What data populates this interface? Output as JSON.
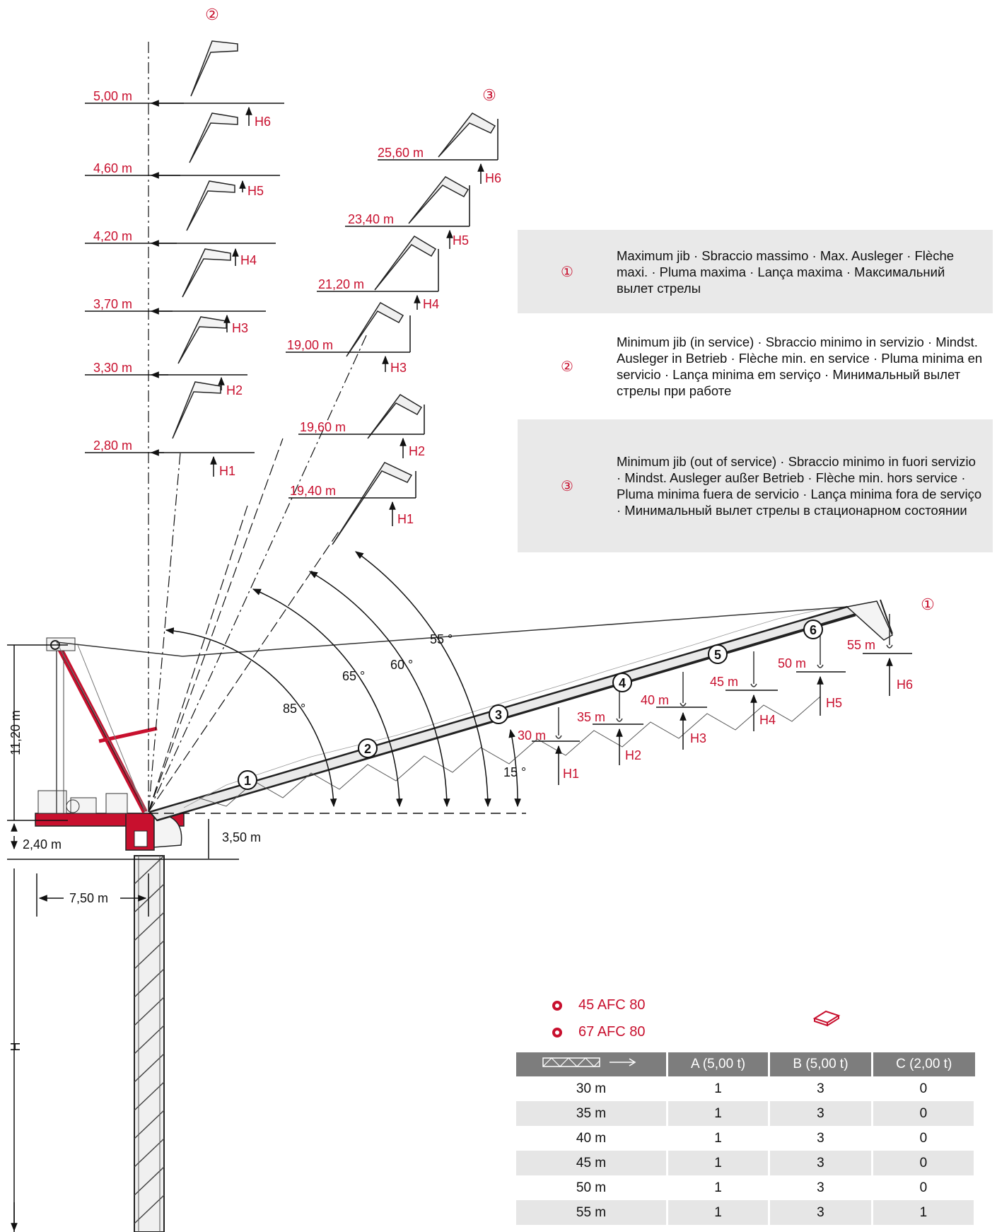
{
  "markers": {
    "m1": "①",
    "m2": "②",
    "m3": "③"
  },
  "colors": {
    "accent": "#c8102e",
    "panel": "#e9e9e9",
    "table_header": "#7d7d7d"
  },
  "left_radii": [
    "5,00 m",
    "4,60 m",
    "4,20 m",
    "3,70 m",
    "3,30 m",
    "2,80 m"
  ],
  "mid_radii": [
    "25,60 m",
    "23,40 m",
    "21,20 m",
    "19,00 m",
    "19,60 m",
    "19,40 m"
  ],
  "heights": [
    "H1",
    "H2",
    "H3",
    "H4",
    "H5",
    "H6"
  ],
  "jib_lengths": [
    "30 m",
    "35 m",
    "40 m",
    "45 m",
    "50 m",
    "55 m"
  ],
  "segments": [
    "1",
    "2",
    "3",
    "4",
    "5",
    "6"
  ],
  "angles": {
    "a85": "85 °",
    "a65": "65 °",
    "a60": "60 °",
    "a55": "55 °",
    "a15": "15 °"
  },
  "dims": {
    "d1120": "11,20 m",
    "d240": "2,40 m",
    "d350": "3,50 m",
    "d750": "7,50 m",
    "dH": "H"
  },
  "legend": [
    {
      "marker": "①",
      "text": "Maximum jib · Sbraccio massimo · Max. Ausleger · Flèche maxi. · Pluma maxima · Lança maxima · Максимальний вылет стрелы"
    },
    {
      "marker": "②",
      "text": "Minimum jib (in service) · Sbraccio minimo in servizio · Mindst. Ausleger in Betrieb · Flèche min. en service · Pluma minima en servicio · Lança minima em serviço · Минимальный вылет стрелы при работе"
    },
    {
      "marker": "③",
      "text": "Minimum jib (out of service) · Sbraccio minimo in fuori servizio · Mindst. Ausleger außer Betrieb · Flèche min. hors service · Pluma minima fuera de servicio · Lança minima fora de serviço · Минимальный вылет стрелы в стационарном состоянии"
    }
  ],
  "mechanisms": [
    "45 AFC 80",
    "67 AFC 80"
  ],
  "counterweight_table": {
    "headers": [
      "A (5,00 t)",
      "B (5,00 t)",
      "C (2,00 t)"
    ],
    "rows": [
      {
        "jib": "30 m",
        "a": "1",
        "b": "3",
        "c": "0"
      },
      {
        "jib": "35 m",
        "a": "1",
        "b": "3",
        "c": "0"
      },
      {
        "jib": "40 m",
        "a": "1",
        "b": "3",
        "c": "0"
      },
      {
        "jib": "45 m",
        "a": "1",
        "b": "3",
        "c": "0"
      },
      {
        "jib": "50 m",
        "a": "1",
        "b": "3",
        "c": "0"
      },
      {
        "jib": "55 m",
        "a": "1",
        "b": "3",
        "c": "1"
      }
    ]
  }
}
